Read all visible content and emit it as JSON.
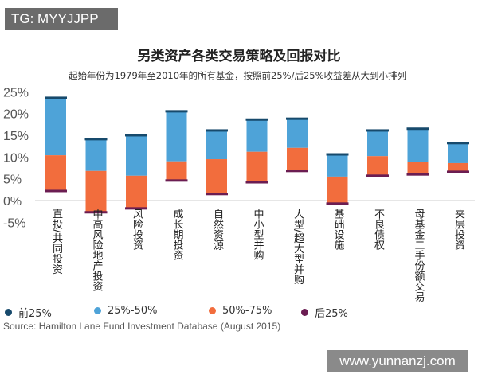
{
  "watermark_top": "TG: MYYJJPP",
  "watermark_bottom": "www.yunnanzj.com",
  "chart_data": {
    "type": "bar",
    "title": "另类资产各类交易策略及回报对比",
    "subtitle": "起始年份为1979年至2010年的所有基金，按照前25%/后25%收益差从大到小排列",
    "ylim": [
      -5,
      25
    ],
    "yticks": [
      "-5%",
      "0%",
      "5%",
      "10%",
      "15%",
      "20%",
      "25%"
    ],
    "ytick_values": [
      -5,
      0,
      5,
      10,
      15,
      20,
      25
    ],
    "categories": [
      "直投/共同投资",
      "中高风险地产投资",
      "风险投资",
      "成长期投资",
      "自然资源",
      "中小型并购",
      "大型/超大型并购",
      "基础设施",
      "不良债权",
      "母基金二手份额交易",
      "夹层投资"
    ],
    "series": [
      {
        "name": "前25%",
        "values": [
          23.6,
          14.1,
          15.0,
          20.5,
          16.1,
          18.6,
          18.8,
          10.6,
          16.1,
          16.5,
          13.2
        ]
      },
      {
        "name": "25%-50%",
        "values": [
          10.4,
          6.8,
          5.7,
          9.0,
          9.5,
          11.2,
          12.1,
          5.5,
          10.2,
          8.8,
          8.6
        ]
      },
      {
        "name": "50%-75%",
        "values": [
          2.2,
          -2.7,
          -1.8,
          4.6,
          1.5,
          4.2,
          6.8,
          -0.7,
          5.7,
          6.0,
          6.6
        ]
      },
      {
        "name": "后25%",
        "values": [
          2.2,
          -2.7,
          -1.8,
          4.6,
          1.5,
          4.2,
          6.8,
          -0.7,
          5.7,
          6.0,
          6.6
        ]
      }
    ],
    "legend": [
      "前25%",
      "25%-50%",
      "50%-75%",
      "后25%"
    ],
    "legend_position": "bottom",
    "colors": {
      "top": "#174a6c",
      "upper": "#4ea3d8",
      "lower": "#f26d3d",
      "bottom": "#6b1d52"
    },
    "source": "Source: Hamilton Lane Fund Investment Database (August 2015)"
  }
}
